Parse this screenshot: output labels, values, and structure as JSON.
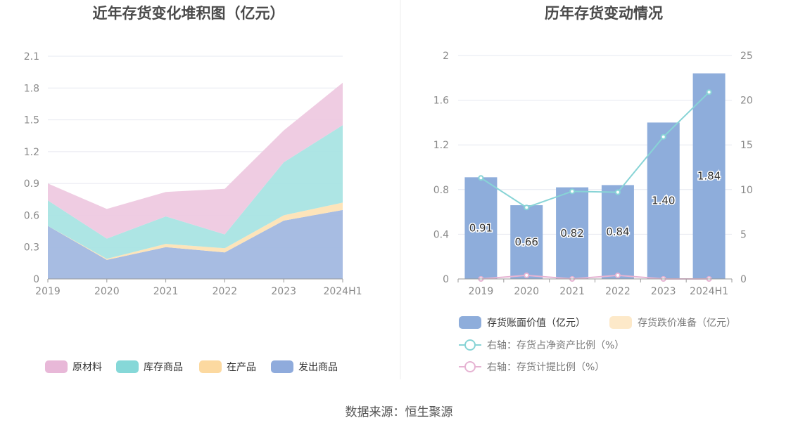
{
  "source_text": "数据来源：恒生聚源",
  "chart_data": [
    {
      "type": "area",
      "stacked": true,
      "title": "近年存货变化堆积图（亿元）",
      "categories": [
        "2019",
        "2020",
        "2021",
        "2022",
        "2023",
        "2024H1"
      ],
      "ylim": [
        0,
        2.1
      ],
      "yticks": [
        "0",
        "0.3",
        "0.6",
        "0.9",
        "1.2",
        "1.5",
        "1.8",
        "2.1"
      ],
      "grid": true,
      "legend_position": "bottom",
      "series": [
        {
          "name": "发出商品",
          "color": "#9fb6e0",
          "values": [
            0.5,
            0.18,
            0.3,
            0.25,
            0.55,
            0.65
          ]
        },
        {
          "name": "在产品",
          "color": "#fde2b4",
          "values": [
            0.0,
            0.01,
            0.03,
            0.04,
            0.05,
            0.07
          ]
        },
        {
          "name": "库存商品",
          "color": "#a6e3e2",
          "values": [
            0.24,
            0.19,
            0.26,
            0.13,
            0.5,
            0.73
          ]
        },
        {
          "name": "原材料",
          "color": "#eec8e0",
          "values": [
            0.16,
            0.28,
            0.23,
            0.43,
            0.3,
            0.4
          ]
        }
      ],
      "legend": [
        {
          "name": "原材料",
          "color": "#e8b8d8"
        },
        {
          "name": "库存商品",
          "color": "#86d8d8"
        },
        {
          "name": "在产品",
          "color": "#fcd9a0"
        },
        {
          "name": "发出商品",
          "color": "#8fabdc"
        }
      ]
    },
    {
      "type": "bar",
      "title": "历年存货变动情况",
      "categories": [
        "2019",
        "2020",
        "2021",
        "2022",
        "2023",
        "2024H1"
      ],
      "ylim_left": [
        0,
        2
      ],
      "yticks_left": [
        "0",
        "0.4",
        "0.8",
        "1.2",
        "1.6",
        "2"
      ],
      "ylim_right": [
        0,
        25
      ],
      "yticks_right": [
        "0",
        "5",
        "10",
        "15",
        "20",
        "25"
      ],
      "grid": true,
      "legend_position": "bottom",
      "bars": {
        "name": "存货账面价值（亿元）",
        "color": "#8eaddb",
        "values": [
          0.91,
          0.66,
          0.82,
          0.84,
          1.4,
          1.84
        ],
        "labels": [
          "0.91",
          "0.66",
          "0.82",
          "0.84",
          "1.40",
          "1.84"
        ]
      },
      "bars_reserve": {
        "name": "存货跌价准备（亿元）",
        "color": "#fde9c9",
        "values": [
          0,
          0,
          0,
          0,
          0,
          0
        ]
      },
      "lines": [
        {
          "name": "右轴：存货占净资产比例（%）",
          "color": "#88d4d6",
          "axis": "right",
          "values": [
            11.3,
            8.0,
            9.8,
            9.7,
            15.9,
            20.9
          ]
        },
        {
          "name": "右轴：存货计提比例（%）",
          "color": "#e6b4d3",
          "axis": "right",
          "values": [
            0.0,
            0.4,
            0.0,
            0.4,
            0.0,
            0.0
          ]
        }
      ]
    }
  ]
}
